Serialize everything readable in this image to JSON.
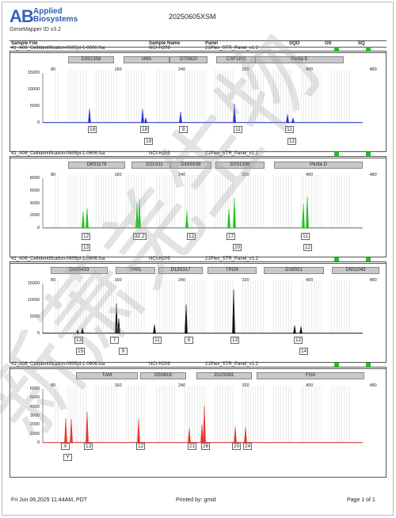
{
  "header": {
    "logo_mark": "AB",
    "brand_line1": "Applied",
    "brand_line2": "Biosystems",
    "app_name": "GeneMapper ID v3.2",
    "report_title": "20250605XSM"
  },
  "columns": {
    "sample_file": "Sample File",
    "sample_name": "Sample Name",
    "panel": "Panel",
    "sqo": "SQO",
    "os": "OS",
    "sq": "SQ"
  },
  "colors": {
    "blue": "#1f33d6",
    "green": "#1ec31e",
    "black": "#111111",
    "red": "#e8352c",
    "status_green": "#1ec31e",
    "marker_fill": "#c8c8c8",
    "watermark": "#9a9a9a"
  },
  "panels": [
    {
      "file": "41_A06_CellIdentification-0605pi-1-0606.fsa",
      "sample": "NCI-H209",
      "panel_name": "21Plex_STR_Panel_v1.2",
      "dye": "blue",
      "markers": [
        "D3S1358",
        "vWA",
        "D7S820",
        "CSF1PO",
        "Penta E"
      ],
      "bp_ticks": [
        "80",
        "160",
        "240",
        "320",
        "400",
        "480"
      ],
      "y_ticks": [
        "15000",
        "10000",
        "5000",
        "0"
      ],
      "alleles": [
        "18",
        "18",
        "19",
        "9",
        "11",
        "11",
        "12"
      ]
    },
    {
      "file": "41_A06_CellIdentification-0605pi-1-0606.fsa",
      "sample": "NCI-H209",
      "panel_name": "21Plex_STR_Panel_v1.2",
      "dye": "green",
      "markers": [
        "D8S1179",
        "D21S11",
        "D16S539",
        "D2S1338",
        "Penta D"
      ],
      "bp_ticks": [
        "80",
        "160",
        "240",
        "320",
        "400",
        "480"
      ],
      "y_ticks": [
        "8000",
        "6000",
        "4000",
        "2000",
        "0"
      ],
      "alleles": [
        "12",
        "13",
        "32.2",
        "12",
        "17",
        "20",
        "11",
        "12"
      ]
    },
    {
      "file": "41_A06_CellIdentification-0605pi-1-0606.fsa",
      "sample": "NCI-H209",
      "panel_name": "21Plex_STR_Panel_v1.2",
      "dye": "black",
      "markers": [
        "D19S433",
        "TH01",
        "D13S317",
        "TPOX",
        "D18S51",
        "D6S1043"
      ],
      "bp_ticks": [
        "80",
        "160",
        "240",
        "320",
        "400",
        "480"
      ],
      "y_ticks": [
        "15000",
        "10000",
        "5000",
        "0"
      ],
      "alleles": [
        "13",
        "15",
        "7",
        "9",
        "11",
        "8",
        "13",
        "12",
        "14"
      ]
    },
    {
      "file": "41_A06_CellIdentification-0605pi-1-0606.fsa",
      "sample": "NCI-H209",
      "panel_name": "21Plex_STR_Panel_v1.2",
      "dye": "red",
      "markers": [
        "TAM",
        "D5S818",
        "D12S391",
        "FGA"
      ],
      "bp_ticks": [
        "80",
        "160",
        "240",
        "320",
        "400",
        "480"
      ],
      "y_ticks": [
        "6000",
        "5000",
        "4000",
        "3000",
        "2000",
        "1000",
        "0"
      ],
      "alleles": [
        "X",
        "Y",
        "13",
        "12",
        "21",
        "26",
        "20",
        "24"
      ]
    }
  ],
  "footer": {
    "datetime": "Fri Jun 06,2025 11:44AM, PDT",
    "printed_by": "Printed by: gmid",
    "page": "Page 1 of 1"
  },
  "watermark_text": "新萧羌生物"
}
